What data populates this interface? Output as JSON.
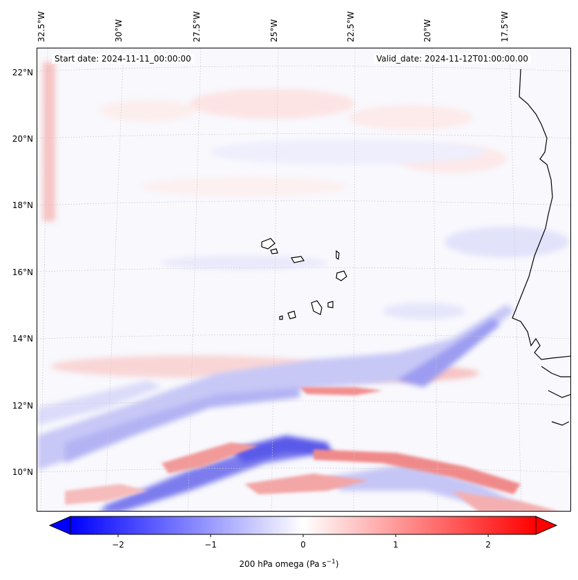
{
  "map": {
    "longitude_labels": [
      "32.5°W",
      "30°W",
      "27.5°W",
      "25°W",
      "22.5°W",
      "20°W",
      "17.5°W"
    ],
    "latitude_labels": [
      "22°N",
      "20°N",
      "18°N",
      "16°N",
      "14°N",
      "12°N",
      "10°N"
    ],
    "start_date": "Start date: 2024-11-11_00:00:00",
    "valid_date": "Valid_date: 2024-11-12T01:00:00.00"
  },
  "colorbar": {
    "ticks": [
      "−2",
      "−1",
      "0",
      "1",
      "2"
    ],
    "label": "200 hPa omega (Pa s",
    "label_sup": "−1",
    "label_end": ")",
    "range": [
      -2.7,
      2.7
    ],
    "colormap": "bwr",
    "low_color": "#0000ff",
    "mid_color": "#ffffff",
    "high_color": "#ff0000"
  }
}
